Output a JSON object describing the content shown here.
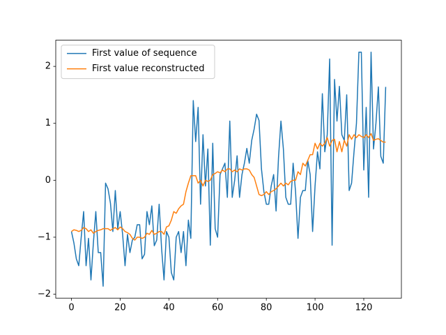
{
  "chart_data": {
    "type": "line",
    "x": [
      0,
      1,
      2,
      3,
      4,
      5,
      6,
      7,
      8,
      9,
      10,
      11,
      12,
      13,
      14,
      15,
      16,
      17,
      18,
      19,
      20,
      21,
      22,
      23,
      24,
      25,
      26,
      27,
      28,
      29,
      30,
      31,
      32,
      33,
      34,
      35,
      36,
      37,
      38,
      39,
      40,
      41,
      42,
      43,
      44,
      45,
      46,
      47,
      48,
      49,
      50,
      51,
      52,
      53,
      54,
      55,
      56,
      57,
      58,
      59,
      60,
      61,
      62,
      63,
      64,
      65,
      66,
      67,
      68,
      69,
      70,
      71,
      72,
      73,
      74,
      75,
      76,
      77,
      78,
      79,
      80,
      81,
      82,
      83,
      84,
      85,
      86,
      87,
      88,
      89,
      90,
      91,
      92,
      93,
      94,
      95,
      96,
      97,
      98,
      99,
      100,
      101,
      102,
      103,
      104,
      105,
      106,
      107,
      108,
      109,
      110,
      111,
      112,
      113,
      114,
      115,
      116,
      117,
      118,
      119,
      120,
      121,
      122,
      123,
      124,
      125,
      126,
      127,
      128,
      129
    ],
    "series": [
      {
        "name": "First value of sequence",
        "color": "#1f77b4",
        "values": [
          -0.9,
          -1.1,
          -1.38,
          -1.5,
          -1.0,
          -0.55,
          -1.5,
          -1.02,
          -1.75,
          -1.1,
          -0.55,
          -1.27,
          -1.27,
          -1.86,
          -0.05,
          -0.15,
          -0.4,
          -0.9,
          -0.18,
          -0.85,
          -0.55,
          -0.95,
          -1.5,
          -0.95,
          -1.27,
          -1.05,
          -1.0,
          -0.78,
          -0.78,
          -1.38,
          -1.3,
          -0.55,
          -0.78,
          -0.45,
          -1.15,
          -1.05,
          -0.42,
          -1.2,
          -1.75,
          -0.9,
          -1.0,
          -1.62,
          -1.75,
          -1.0,
          -0.9,
          -1.27,
          -0.9,
          -1.5,
          -0.7,
          -1.02,
          1.4,
          0.68,
          1.28,
          -0.42,
          0.8,
          -0.1,
          0.55,
          -1.14,
          0.65,
          -0.85,
          -1.0,
          0.1,
          0.2,
          0.3,
          -0.3,
          1.04,
          -0.3,
          0.0,
          0.43,
          -0.3,
          0.1,
          0.3,
          0.56,
          0.3,
          0.7,
          0.9,
          1.16,
          1.05,
          0.2,
          -0.2,
          -0.42,
          -0.42,
          -0.1,
          0.1,
          -0.54,
          0.4,
          1.04,
          0.55,
          -0.3,
          -0.42,
          -0.42,
          0.3,
          -0.2,
          -1.02,
          -0.3,
          -0.18,
          -0.18,
          0.35,
          0.1,
          -0.9,
          -0.1,
          0.5,
          0.2,
          1.52,
          0.5,
          0.8,
          2.13,
          -1.14,
          1.77,
          1.04,
          1.65,
          0.8,
          0.7,
          1.5,
          -0.18,
          -0.05,
          0.5,
          1.0,
          2.25,
          2.25,
          0.18,
          1.28,
          -0.3,
          2.25,
          0.55,
          1.0,
          1.64,
          0.42,
          0.3,
          1.64
        ]
      },
      {
        "name": "First value reconstructed",
        "color": "#ff7f0e",
        "values": [
          -0.9,
          -0.87,
          -0.88,
          -0.9,
          -0.88,
          -0.83,
          -0.85,
          -0.9,
          -0.87,
          -0.93,
          -0.9,
          -0.88,
          -0.87,
          -0.85,
          -0.85,
          -0.85,
          -0.88,
          -0.85,
          -0.83,
          -0.87,
          -0.82,
          -0.85,
          -0.9,
          -0.92,
          -0.95,
          -1.02,
          -1.05,
          -1.0,
          -1.0,
          -1.02,
          -1.0,
          -0.93,
          -0.95,
          -0.88,
          -0.95,
          -0.93,
          -0.9,
          -0.9,
          -0.95,
          -0.82,
          -0.8,
          -0.7,
          -0.55,
          -0.58,
          -0.5,
          -0.45,
          -0.42,
          -0.2,
          -0.05,
          0.08,
          0.08,
          0.08,
          -0.05,
          0.0,
          -0.1,
          0.0,
          -0.02,
          0.0,
          0.1,
          0.12,
          0.15,
          0.13,
          0.18,
          0.15,
          0.2,
          0.2,
          0.15,
          0.18,
          0.15,
          0.2,
          0.18,
          0.2,
          0.2,
          0.18,
          0.1,
          0.05,
          -0.1,
          -0.25,
          -0.27,
          -0.25,
          -0.2,
          -0.25,
          -0.2,
          -0.18,
          -0.15,
          -0.1,
          -0.05,
          -0.1,
          -0.05,
          -0.08,
          -0.02,
          0.0,
          0.0,
          0.15,
          0.1,
          0.3,
          0.25,
          0.35,
          0.45,
          0.45,
          0.65,
          0.55,
          0.65,
          0.6,
          0.65,
          0.75,
          0.6,
          0.7,
          0.72,
          0.5,
          0.68,
          0.5,
          0.7,
          0.6,
          0.8,
          0.72,
          0.8,
          0.75,
          0.8,
          0.77,
          0.75,
          0.8,
          0.75,
          0.82,
          0.7,
          0.72,
          0.73,
          0.7,
          0.67,
          0.67
        ]
      }
    ],
    "xlim": [
      -6.45,
      135.45
    ],
    "xticks": [
      0,
      20,
      40,
      60,
      80,
      100,
      120
    ],
    "ylim": [
      -2.07,
      2.46
    ],
    "yticks": [
      {
        "value": -2,
        "label": "−2"
      },
      {
        "value": -1,
        "label": "−1"
      },
      0,
      1,
      2
    ],
    "legend": "upper left"
  }
}
